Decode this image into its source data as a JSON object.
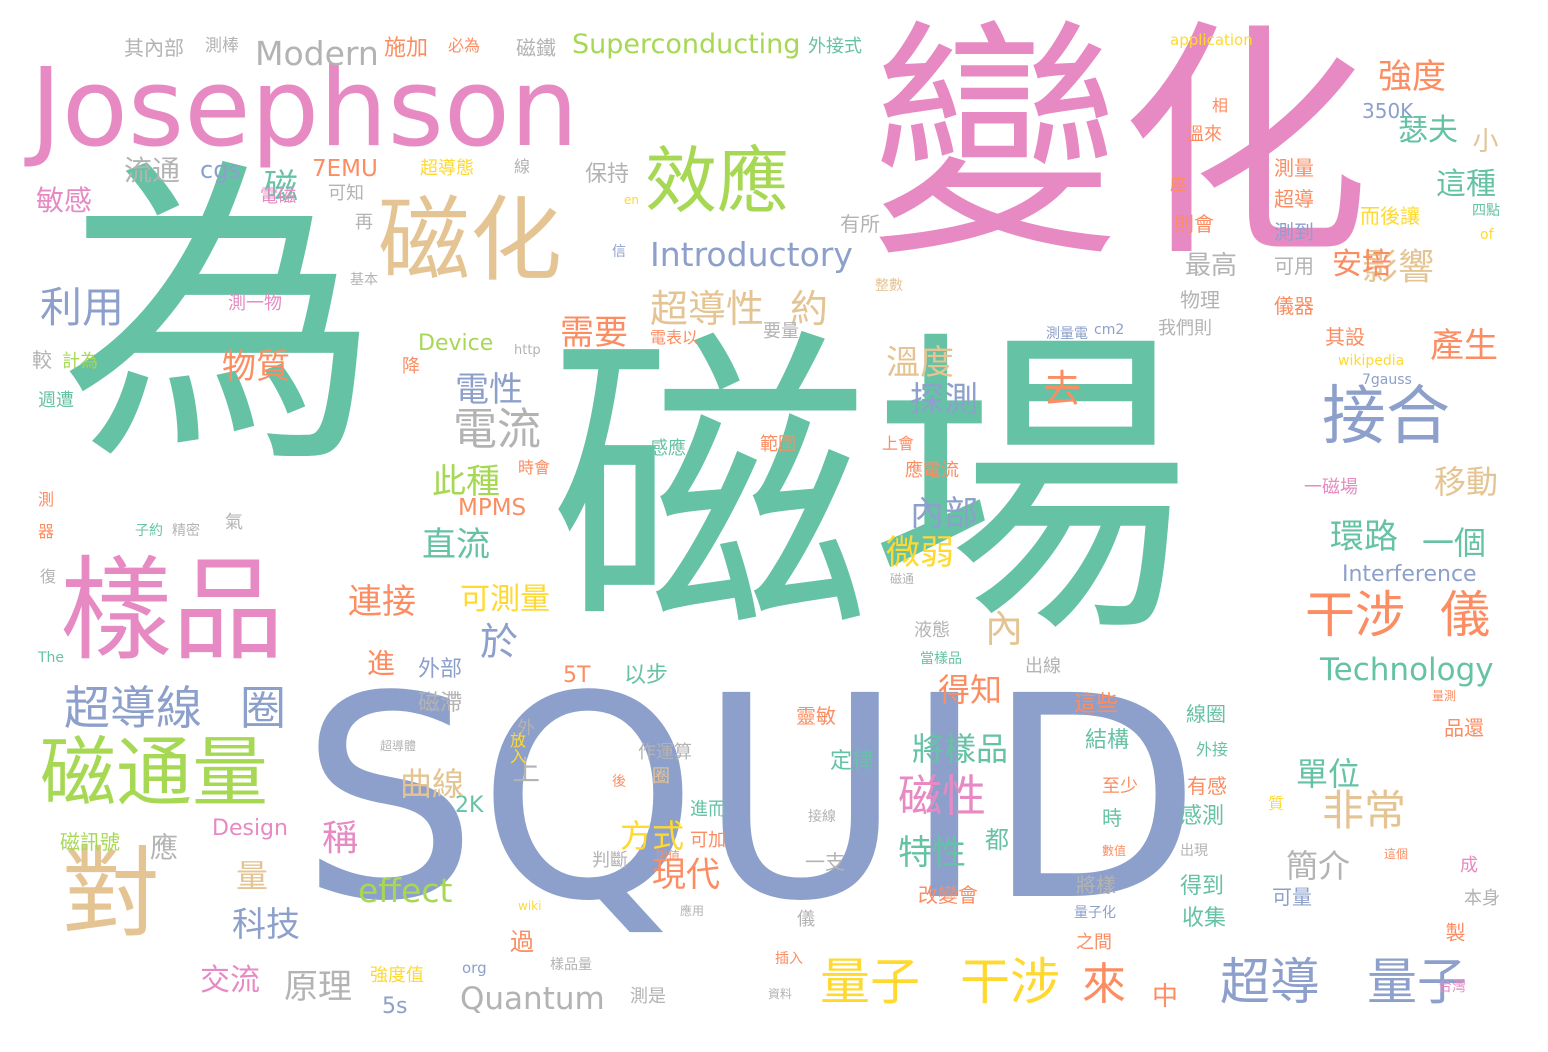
{
  "palette": {
    "green": "#66c2a5",
    "pink": "#e78ac3",
    "blue": "#8da0cb",
    "tan": "#e5c494",
    "lime": "#a6d854",
    "orange": "#fc8d62",
    "yellow": "#ffd92f",
    "gray": "#b3b3b3"
  },
  "words": [
    {
      "text": "磁場"
    },
    {
      "text": "為"
    },
    {
      "text": "SQUID"
    },
    {
      "text": "變化"
    },
    {
      "text": "Josephson"
    },
    {
      "text": "樣品"
    },
    {
      "text": "磁化"
    },
    {
      "text": "效應"
    },
    {
      "text": "對"
    },
    {
      "text": "磁通量"
    },
    {
      "text": "接合"
    },
    {
      "text": "超導"
    },
    {
      "text": "量子"
    },
    {
      "text": "量子"
    },
    {
      "text": "干涉"
    },
    {
      "text": "干涉"
    },
    {
      "text": "儀"
    },
    {
      "text": "超導線"
    },
    {
      "text": "圈"
    },
    {
      "text": "電流"
    },
    {
      "text": "磁性"
    },
    {
      "text": "影響"
    },
    {
      "text": "非常"
    },
    {
      "text": "強度"
    },
    {
      "text": "超導性"
    },
    {
      "text": "約"
    },
    {
      "text": "Modern"
    },
    {
      "text": "Superconducting"
    },
    {
      "text": "Introductory"
    },
    {
      "text": "Technology"
    },
    {
      "text": "Quantum"
    },
    {
      "text": "Interference"
    },
    {
      "text": "Device"
    },
    {
      "text": "Design"
    },
    {
      "text": "effect"
    },
    {
      "text": "MPMS"
    },
    {
      "text": "7EMU"
    },
    {
      "text": "350K"
    },
    {
      "text": "cgs"
    },
    {
      "text": "application"
    },
    {
      "text": "wikipedia"
    },
    {
      "text": "http"
    },
    {
      "text": "cm2"
    },
    {
      "text": "7gauss"
    },
    {
      "text": "org"
    },
    {
      "text": "wiki"
    },
    {
      "text": "The"
    },
    {
      "text": "en"
    },
    {
      "text": "of"
    },
    {
      "text": "5T"
    },
    {
      "text": "2K"
    },
    {
      "text": "5s"
    },
    {
      "text": "利用"
    },
    {
      "text": "物質"
    },
    {
      "text": "需要"
    },
    {
      "text": "溫度"
    },
    {
      "text": "探測"
    },
    {
      "text": "電性"
    },
    {
      "text": "去"
    },
    {
      "text": "此種"
    },
    {
      "text": "內部"
    },
    {
      "text": "直流"
    },
    {
      "text": "微弱"
    },
    {
      "text": "連接"
    },
    {
      "text": "可測量"
    },
    {
      "text": "環路"
    },
    {
      "text": "一個"
    },
    {
      "text": "移動"
    },
    {
      "text": "產生"
    },
    {
      "text": "安培"
    },
    {
      "text": "最高"
    },
    {
      "text": "這種"
    },
    {
      "text": "瑟夫"
    },
    {
      "text": "於"
    },
    {
      "text": "內"
    },
    {
      "text": "得知"
    },
    {
      "text": "將樣品"
    },
    {
      "text": "曲線"
    },
    {
      "text": "上"
    },
    {
      "text": "單位"
    },
    {
      "text": "簡介"
    },
    {
      "text": "現代"
    },
    {
      "text": "方式"
    },
    {
      "text": "特性"
    },
    {
      "text": "稱"
    },
    {
      "text": "科技"
    },
    {
      "text": "原理"
    },
    {
      "text": "交流"
    },
    {
      "text": "來"
    },
    {
      "text": "中"
    },
    {
      "text": "流通"
    },
    {
      "text": "敏感"
    },
    {
      "text": "磁"
    },
    {
      "text": "小"
    },
    {
      "text": "進"
    },
    {
      "text": "外部"
    },
    {
      "text": "磁滯"
    },
    {
      "text": "出線"
    },
    {
      "text": "液態"
    },
    {
      "text": "當樣品"
    },
    {
      "text": "其內部"
    },
    {
      "text": "測棒"
    },
    {
      "text": "施加"
    },
    {
      "text": "必為"
    },
    {
      "text": "磁鐵"
    },
    {
      "text": "外接式"
    },
    {
      "text": "超導態"
    },
    {
      "text": "保持"
    },
    {
      "text": "電磁"
    },
    {
      "text": "可知"
    },
    {
      "text": "再"
    },
    {
      "text": "線"
    },
    {
      "text": "有所"
    },
    {
      "text": "信"
    },
    {
      "text": "基本"
    },
    {
      "text": "測一物"
    },
    {
      "text": "較"
    },
    {
      "text": "計為"
    },
    {
      "text": "週遭"
    },
    {
      "text": "降"
    },
    {
      "text": "電表以"
    },
    {
      "text": "要量"
    },
    {
      "text": "測量電"
    },
    {
      "text": "我們則"
    },
    {
      "text": "物理"
    },
    {
      "text": "整數"
    },
    {
      "text": "感應"
    },
    {
      "text": "範圍"
    },
    {
      "text": "上會"
    },
    {
      "text": "應電流"
    },
    {
      "text": "時會"
    },
    {
      "text": "子約"
    },
    {
      "text": "精密"
    },
    {
      "text": "氣"
    },
    {
      "text": "測"
    },
    {
      "text": "器"
    },
    {
      "text": "復"
    },
    {
      "text": "以步"
    },
    {
      "text": "外"
    },
    {
      "text": "作運算"
    },
    {
      "text": "圈"
    },
    {
      "text": "進而"
    },
    {
      "text": "可加"
    },
    {
      "text": "判斷"
    },
    {
      "text": "後"
    },
    {
      "text": "阻值"
    },
    {
      "text": "應用"
    },
    {
      "text": "定律"
    },
    {
      "text": "靈敏"
    },
    {
      "text": "放入"
    },
    {
      "text": "超導體"
    },
    {
      "text": "接線"
    },
    {
      "text": "一支"
    },
    {
      "text": "都"
    },
    {
      "text": "改變會"
    },
    {
      "text": "儀"
    },
    {
      "text": "插入"
    },
    {
      "text": "資料"
    },
    {
      "text": "強度值"
    },
    {
      "text": "樣品量"
    },
    {
      "text": "測是"
    },
    {
      "text": "過"
    },
    {
      "text": "量"
    },
    {
      "text": "應"
    },
    {
      "text": "磁訊號"
    },
    {
      "text": "結構"
    },
    {
      "text": "這些"
    },
    {
      "text": "至少"
    },
    {
      "text": "時"
    },
    {
      "text": "數值"
    },
    {
      "text": "將樣"
    },
    {
      "text": "量子化"
    },
    {
      "text": "之間"
    },
    {
      "text": "線圈"
    },
    {
      "text": "感測"
    },
    {
      "text": "出現"
    },
    {
      "text": "得到"
    },
    {
      "text": "收集"
    },
    {
      "text": "可量"
    },
    {
      "text": "外接"
    },
    {
      "text": "有感"
    },
    {
      "text": "質"
    },
    {
      "text": "這個"
    },
    {
      "text": "品還"
    },
    {
      "text": "量測"
    },
    {
      "text": "成"
    },
    {
      "text": "本身"
    },
    {
      "text": "製"
    },
    {
      "text": "台灣"
    },
    {
      "text": "一磁場"
    },
    {
      "text": "磁通"
    },
    {
      "text": "測量"
    },
    {
      "text": "超導"
    },
    {
      "text": "測到"
    },
    {
      "text": "可用"
    },
    {
      "text": "儀器"
    },
    {
      "text": "則會"
    },
    {
      "text": "而後讓"
    },
    {
      "text": "四點"
    },
    {
      "text": "其設"
    },
    {
      "text": "溫來"
    },
    {
      "text": "相"
    },
    {
      "text": "座"
    }
  ]
}
